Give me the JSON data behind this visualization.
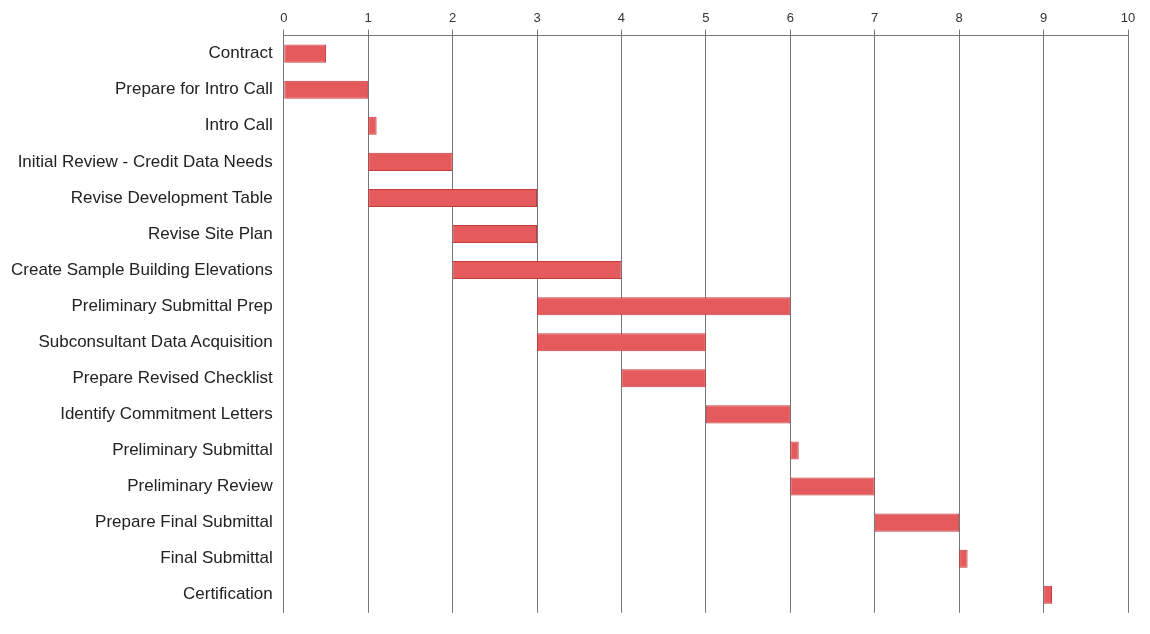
{
  "chart_data": {
    "type": "bar",
    "orientation": "horizontal",
    "categories": [
      "Contract",
      "Prepare for Intro Call",
      "Intro Call",
      "Initial Review - Credit Data Needs",
      "Revise Development Table",
      "Revise Site Plan",
      "Create Sample Building Elevations",
      "Preliminary Submittal Prep",
      "Subconsultant Data Acquisition",
      "Prepare Revised Checklist",
      "Identify Commitment Letters",
      "Preliminary Submittal",
      "Preliminary Review",
      "Prepare Final Submittal",
      "Final Submittal",
      "Certification"
    ],
    "base": [
      0,
      0,
      1,
      1,
      1,
      2,
      2,
      3,
      3,
      4,
      5,
      6,
      6,
      7,
      8,
      9
    ],
    "values": [
      0.5,
      1,
      0.1,
      1,
      2,
      1,
      2,
      3,
      2,
      1,
      1,
      0.1,
      1,
      1,
      0.1,
      0.1
    ],
    "color": "#e55a5c",
    "xlim": [
      0,
      10
    ],
    "xticks": [
      0,
      1,
      2,
      3,
      4,
      5,
      6,
      7,
      8,
      9,
      10
    ],
    "grid": "x",
    "legend": false
  }
}
